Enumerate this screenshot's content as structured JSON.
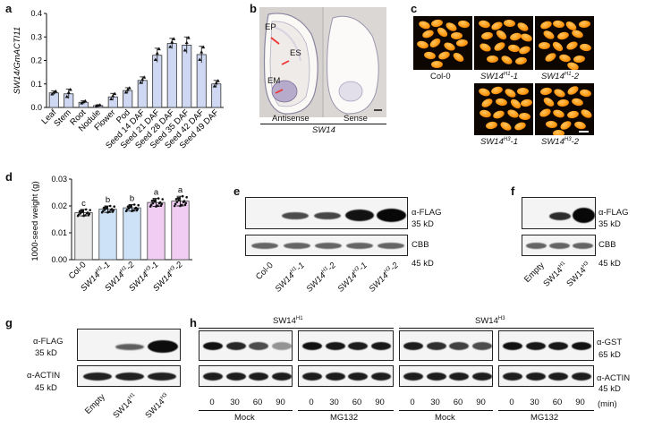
{
  "panels": {
    "a": "a",
    "b": "b",
    "c": "c",
    "d": "d",
    "e": "e",
    "f": "f",
    "g": "g",
    "h": "h"
  },
  "chart_data": [
    {
      "type": "bar",
      "panel": "a",
      "ylabel": "SW14/GmACTI11",
      "ylim": [
        0,
        0.4
      ],
      "yticks": [
        "0.0",
        "0.1",
        "0.2",
        "0.3",
        "0.4"
      ],
      "categories": [
        "Leaf",
        "Stem",
        "Root",
        "Nodule",
        "Flower",
        "Pod",
        "Seed 14 DAF",
        "Seed 21 DAF",
        "Seed 28 DAF",
        "Seed 35 DAF",
        "Seed 42 DAF",
        "Seed 49 DAF"
      ],
      "values": [
        0.062,
        0.058,
        0.022,
        0.008,
        0.045,
        0.072,
        0.115,
        0.222,
        0.272,
        0.265,
        0.225,
        0.1
      ],
      "errors": [
        0.008,
        0.02,
        0.006,
        0.003,
        0.015,
        0.012,
        0.015,
        0.03,
        0.022,
        0.035,
        0.035,
        0.015
      ],
      "grid": false
    },
    {
      "type": "bar",
      "panel": "d",
      "ylabel": "1000-seed weight (g)",
      "ylim": [
        0,
        0.03
      ],
      "yticks": [
        "0.00",
        "0.01",
        "0.02",
        "0.03"
      ],
      "categories": [
        "Col-0",
        "SW14H1-1",
        "SW14H1-2",
        "SW14H3-1",
        "SW14H3-2"
      ],
      "values": [
        0.0175,
        0.0188,
        0.0193,
        0.0213,
        0.0218
      ],
      "errors": [
        0.0012,
        0.0012,
        0.0012,
        0.0015,
        0.0018
      ],
      "letters": [
        "c",
        "b",
        "b",
        "a",
        "a"
      ],
      "colors": [
        "#ebebeb",
        "#cde2f6",
        "#cde2f6",
        "#f1cdf3",
        "#f1cdf3"
      ],
      "grid": false
    }
  ],
  "panel_b": {
    "labels": {
      "ep": "EP",
      "es": "ES",
      "em": "EM"
    },
    "antisense": "Antisense",
    "sense": "Sense",
    "gene": "SW14"
  },
  "panel_c": {
    "col0": "Col-0",
    "h1_1_base": "SW14",
    "h1_1_sup": "H1",
    "h1_1_suf": "-1",
    "h1_2_base": "SW14",
    "h1_2_sup": "H1",
    "h1_2_suf": "-2",
    "h3_1_base": "SW14",
    "h3_1_sup": "H3",
    "h3_1_suf": "-1",
    "h3_2_base": "SW14",
    "h3_2_sup": "H3",
    "h3_2_suf": "-2"
  },
  "panel_d": {
    "x_labels": [
      {
        "base": "Col-0",
        "sup": "",
        "suf": ""
      },
      {
        "base": "SW14",
        "sup": "H1",
        "suf": "-1"
      },
      {
        "base": "SW14",
        "sup": "H1",
        "suf": "-2"
      },
      {
        "base": "SW14",
        "sup": "H3",
        "suf": "-1"
      },
      {
        "base": "SW14",
        "sup": "H3",
        "suf": "-2"
      }
    ]
  },
  "panel_e": {
    "flag": "α-FLAG",
    "kd35": "35 kD",
    "cbb": "CBB",
    "kd45": "45 kD",
    "lanes": [
      {
        "base": "Col-0",
        "sup": "",
        "suf": ""
      },
      {
        "base": "SW14",
        "sup": "H1",
        "suf": "-1"
      },
      {
        "base": "SW14",
        "sup": "H1",
        "suf": "-2"
      },
      {
        "base": "SW14",
        "sup": "H3",
        "suf": "-1"
      },
      {
        "base": "SW14",
        "sup": "H3",
        "suf": "-2"
      }
    ]
  },
  "panel_f": {
    "flag": "α-FLAG",
    "kd35": "35 kD",
    "cbb": "CBB",
    "kd45": "45 kD",
    "lanes": [
      {
        "base": "Empty",
        "sup": ""
      },
      {
        "base": "SW14",
        "sup": "H1"
      },
      {
        "base": "SW14",
        "sup": "H3"
      }
    ]
  },
  "panel_g": {
    "flag": "α-FLAG",
    "kd35": "35 kD",
    "actin": "α-ACTIN",
    "kd45": "45 kD",
    "lanes": [
      {
        "base": "Empty",
        "sup": ""
      },
      {
        "base": "SW14",
        "sup": "H1"
      },
      {
        "base": "SW14",
        "sup": "H3"
      }
    ]
  },
  "panel_h": {
    "h1_base": "SW14",
    "h1_sup": "H1",
    "h3_base": "SW14",
    "h3_sup": "H3",
    "gst": "α-GST",
    "kd65": "65 kD",
    "actin": "α-ACTIN",
    "kd45": "45 kD",
    "times": [
      "0",
      "30",
      "60",
      "90",
      "0",
      "30",
      "60",
      "90",
      "0",
      "30",
      "60",
      "90",
      "0",
      "30",
      "60",
      "90"
    ],
    "unit": "(min)",
    "treatments": [
      "Mock",
      "MG132",
      "Mock",
      "MG132"
    ]
  },
  "colors": {
    "bar_a": "#cfd8f2",
    "seed_bg": "#0c0500",
    "seed": "#ff9a12"
  }
}
